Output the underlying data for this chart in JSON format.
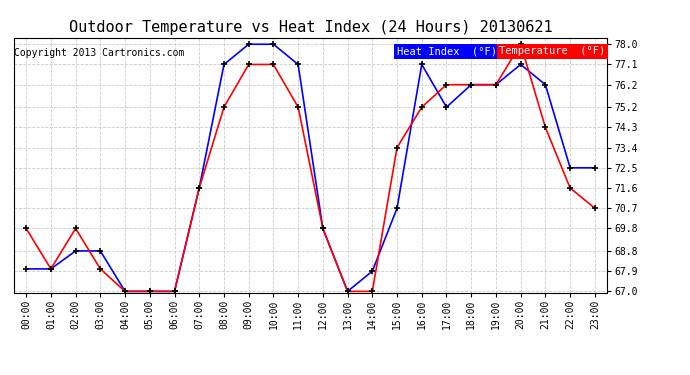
{
  "title": "Outdoor Temperature vs Heat Index (24 Hours) 20130621",
  "copyright": "Copyright 2013 Cartronics.com",
  "background_color": "#ffffff",
  "plot_bg_color": "#ffffff",
  "grid_color": "#cccccc",
  "hours": [
    "00:00",
    "01:00",
    "02:00",
    "03:00",
    "04:00",
    "05:00",
    "06:00",
    "07:00",
    "08:00",
    "09:00",
    "10:00",
    "11:00",
    "12:00",
    "13:00",
    "14:00",
    "15:00",
    "16:00",
    "17:00",
    "18:00",
    "19:00",
    "20:00",
    "21:00",
    "22:00",
    "23:00"
  ],
  "heat_index": [
    68.0,
    68.0,
    68.8,
    68.8,
    67.0,
    67.0,
    67.0,
    71.6,
    77.1,
    78.0,
    78.0,
    77.1,
    69.8,
    67.0,
    67.9,
    70.7,
    77.1,
    75.2,
    76.2,
    76.2,
    77.1,
    76.2,
    72.5,
    72.5
  ],
  "temperature": [
    69.8,
    68.0,
    69.8,
    68.0,
    67.0,
    67.0,
    67.0,
    71.6,
    75.2,
    77.1,
    77.1,
    75.2,
    69.8,
    67.0,
    67.0,
    73.4,
    75.2,
    76.2,
    76.2,
    76.2,
    78.0,
    74.3,
    71.6,
    70.7
  ],
  "ylim_min": 67.0,
  "ylim_max": 78.0,
  "yticks": [
    67.0,
    67.9,
    68.8,
    69.8,
    70.7,
    71.6,
    72.5,
    73.4,
    74.3,
    75.2,
    76.2,
    77.1,
    78.0
  ],
  "heat_index_color": "#0000ff",
  "temperature_color": "#ff0000",
  "heat_index_label": "Heat Index  (°F)",
  "temperature_label": "Temperature  (°F)",
  "legend_hi_bg": "#0000ff",
  "legend_temp_bg": "#ff0000",
  "legend_text_color": "#ffffff",
  "marker": "+",
  "marker_color": "#000000",
  "marker_size": 5,
  "linewidth": 1.2,
  "title_fontsize": 11,
  "copyright_fontsize": 7,
  "tick_fontsize": 7,
  "legend_fontsize": 7.5
}
